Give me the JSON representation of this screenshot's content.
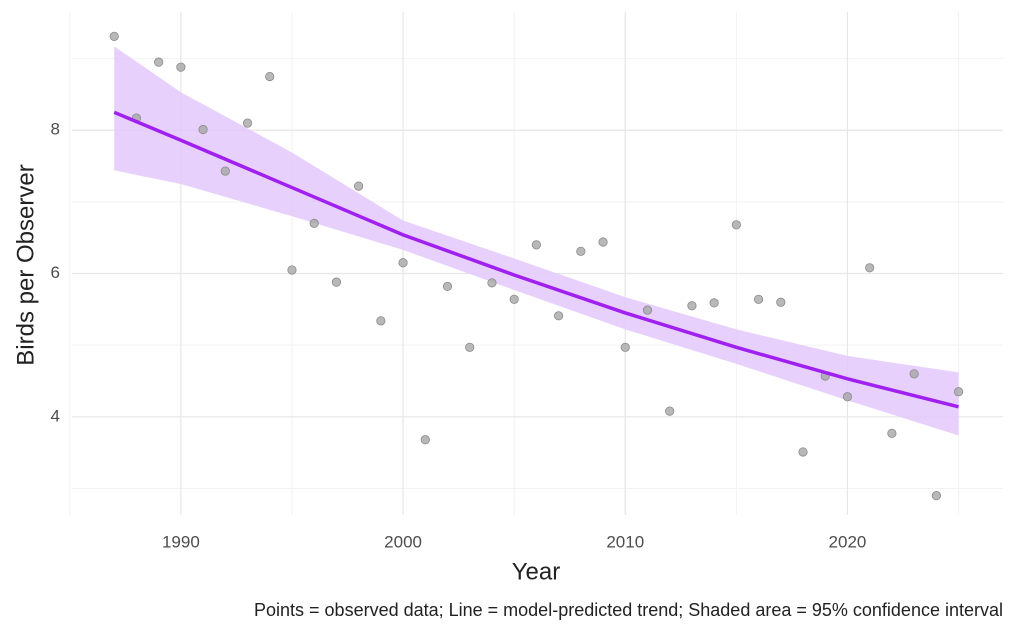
{
  "chart_data": {
    "type": "scatter",
    "x_label": "Year",
    "y_label": "Birds per Observer",
    "caption": "Points = observed data; Line = model-predicted trend; Shaded area = 95% confidence interval",
    "xlim": [
      1985.1,
      2027.0
    ],
    "ylim": [
      2.63,
      9.65
    ],
    "xticks": [
      1990,
      2000,
      2010,
      2020
    ],
    "yticks": [
      4,
      6,
      8
    ],
    "x_minor_ticks": [
      1985,
      1995,
      2005,
      2015,
      2025
    ],
    "y_minor_ticks": [
      3,
      5,
      7,
      9
    ],
    "grid": true,
    "x": [
      1987,
      1988,
      1989,
      1990,
      1991,
      1992,
      1993,
      1994,
      1995,
      1996,
      1997,
      1998,
      1999,
      2000,
      2001,
      2002,
      2003,
      2004,
      2005,
      2006,
      2007,
      2008,
      2009,
      2010,
      2011,
      2012,
      2013,
      2014,
      2015,
      2016,
      2017,
      2018,
      2019,
      2020,
      2021,
      2022,
      2023,
      2024,
      2025
    ],
    "values": [
      9.31,
      8.17,
      8.95,
      8.88,
      8.01,
      7.43,
      8.1,
      8.75,
      6.05,
      6.7,
      5.88,
      7.22,
      5.34,
      6.15,
      3.68,
      5.82,
      4.97,
      5.87,
      5.64,
      6.4,
      5.41,
      6.31,
      6.44,
      4.97,
      5.49,
      4.08,
      5.55,
      5.59,
      6.68,
      5.64,
      5.6,
      3.51,
      4.57,
      4.28,
      6.08,
      3.77,
      4.6,
      2.9,
      4.35
    ],
    "color": "#a6a6a6",
    "trend": {
      "x": [
        1987,
        1990,
        1995,
        2000,
        2005,
        2010,
        2015,
        2020,
        2025
      ],
      "values": [
        8.25,
        7.86,
        7.2,
        6.54,
        5.98,
        5.45,
        4.97,
        4.53,
        4.14
      ],
      "color": "#a020f0"
    },
    "band": {
      "x": [
        1987,
        1990,
        1995,
        2000,
        2005,
        2010,
        2015,
        2020,
        2025
      ],
      "upper": [
        9.17,
        8.53,
        7.69,
        6.74,
        6.21,
        5.67,
        5.22,
        4.85,
        4.62
      ],
      "lower": [
        7.44,
        7.25,
        6.8,
        6.33,
        5.77,
        5.22,
        4.74,
        4.23,
        3.74
      ],
      "color": "#e3c8fb"
    }
  }
}
